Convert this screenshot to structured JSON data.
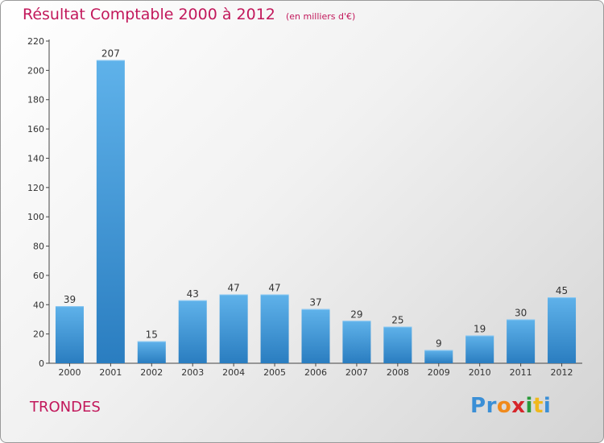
{
  "header": {
    "title": "Résultat Comptable 2000 à 2012",
    "unit": "(en milliers d'€)"
  },
  "footer": {
    "commune": "TRONDES",
    "logo": "Proxiti"
  },
  "colors": {
    "title": "#c2185b",
    "bar_light": "#5fb2ea",
    "bar_dark": "#2a7dc0",
    "logo_letters": [
      "#3b8fd6",
      "#3b8fd6",
      "#f08a1c",
      "#d6252a",
      "#2a9a3a",
      "#f0b81c",
      "#3b8fd6"
    ]
  },
  "chart_data": {
    "type": "bar",
    "categories": [
      "2000",
      "2001",
      "2002",
      "2003",
      "2004",
      "2005",
      "2006",
      "2007",
      "2008",
      "2009",
      "2010",
      "2011",
      "2012"
    ],
    "values": [
      39,
      207,
      15,
      43,
      47,
      47,
      37,
      29,
      25,
      9,
      19,
      30,
      45
    ],
    "data_labels": [
      "39",
      "207",
      "15",
      "43",
      "47",
      "47",
      "37",
      "29",
      "25",
      "9",
      "19",
      "30",
      "45"
    ],
    "y_ticks": [
      "0",
      "20",
      "40",
      "60",
      "80",
      "100",
      "120",
      "140",
      "160",
      "180",
      "200",
      "220"
    ],
    "ylim": [
      0,
      220
    ],
    "grid": false,
    "legend": "none"
  }
}
